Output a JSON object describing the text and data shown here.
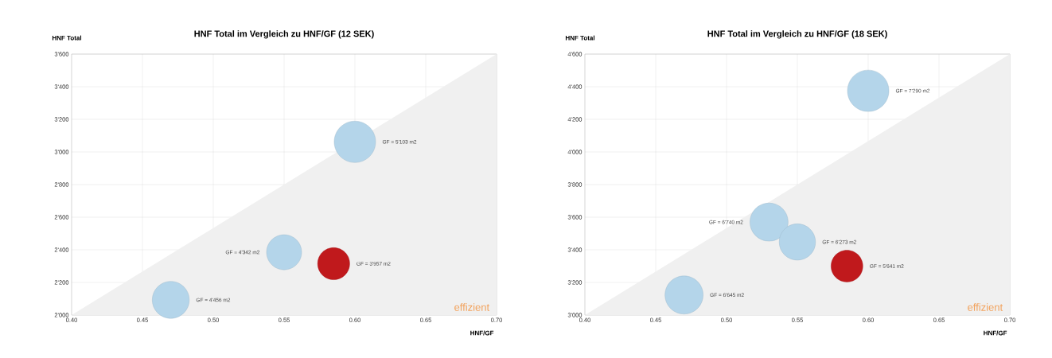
{
  "chart_data": [
    {
      "type": "bubble",
      "title": "HNF Total im Vergleich zu HNF/GF (12 SEK)",
      "xlabel": "HNF/GF",
      "ylabel": "HNF Total",
      "grid": true,
      "xlim": [
        0.4,
        0.7
      ],
      "xticks": [
        {
          "value": 0.4,
          "label": "0.40"
        },
        {
          "value": 0.45,
          "label": "0.45"
        },
        {
          "value": 0.5,
          "label": "0.50"
        },
        {
          "value": 0.55,
          "label": "0.55"
        },
        {
          "value": 0.6,
          "label": "0.60"
        },
        {
          "value": 0.65,
          "label": "0.65"
        },
        {
          "value": 0.7,
          "label": "0.70"
        }
      ],
      "ylim": [
        2000,
        3600
      ],
      "yticks": [
        {
          "value": 2000,
          "label": "2'000"
        },
        {
          "value": 2200,
          "label": "2'200"
        },
        {
          "value": 2400,
          "label": "2'400"
        },
        {
          "value": 2600,
          "label": "2'600"
        },
        {
          "value": 2800,
          "label": "2'800"
        },
        {
          "value": 3000,
          "label": "3'000"
        },
        {
          "value": 3200,
          "label": "3'200"
        },
        {
          "value": 3400,
          "label": "3'400"
        },
        {
          "value": 3600,
          "label": "3'600"
        }
      ],
      "annotations": [
        "effizient"
      ],
      "series": [
        {
          "type": "area",
          "color": "#f0f0f0",
          "x": [
            0.4,
            0.7
          ],
          "values": [
            2000,
            3600
          ]
        },
        {
          "x": [
            0.47,
            0.55,
            0.585,
            0.6
          ],
          "values": [
            2093,
            2385,
            2315,
            3062
          ],
          "sizes": [
            0.8,
            0.72,
            0.6,
            1
          ],
          "colors": [
            "#b4d5ea",
            "#b4d5ea",
            "#c0191c",
            "#b4d5ea"
          ],
          "value_labels": [
            "GF = 4'456 m2",
            "GF = 4'342 m2",
            "GF = 3'957 m2",
            "GF = 5'103 m2"
          ]
        }
      ]
    },
    {
      "type": "bubble",
      "title": "HNF Total im Vergleich zu HNF/GF (18 SEK)",
      "xlabel": "HNF/GF",
      "ylabel": "HNF Total",
      "grid": true,
      "xlim": [
        0.4,
        0.7
      ],
      "xticks": [
        {
          "value": 0.4,
          "label": "0.40"
        },
        {
          "value": 0.45,
          "label": "0.45"
        },
        {
          "value": 0.5,
          "label": "0.50"
        },
        {
          "value": 0.55,
          "label": "0.55"
        },
        {
          "value": 0.6,
          "label": "0.60"
        },
        {
          "value": 0.65,
          "label": "0.65"
        },
        {
          "value": 0.7,
          "label": "0.70"
        }
      ],
      "ylim": [
        3000,
        4600
      ],
      "yticks": [
        {
          "value": 3000,
          "label": "3'000"
        },
        {
          "value": 3200,
          "label": "3'200"
        },
        {
          "value": 3400,
          "label": "3'400"
        },
        {
          "value": 3600,
          "label": "3'600"
        },
        {
          "value": 3800,
          "label": "3'800"
        },
        {
          "value": 4000,
          "label": "4'000"
        },
        {
          "value": 4200,
          "label": "4'200"
        },
        {
          "value": 4400,
          "label": "4'400"
        },
        {
          "value": 4600,
          "label": "4'600"
        }
      ],
      "annotations": [
        "effizient"
      ],
      "series": [
        {
          "type": "area",
          "color": "#f0f0f0",
          "x": [
            0.4,
            0.7
          ],
          "values": [
            3000,
            4600
          ]
        },
        {
          "x": [
            0.47,
            0.53,
            0.55,
            0.585,
            0.6
          ],
          "values": [
            3123,
            3570,
            3448,
            3300,
            4375
          ],
          "sizes": [
            0.85,
            0.85,
            0.77,
            0.59,
            1
          ],
          "colors": [
            "#b4d5ea",
            "#b4d5ea",
            "#b4d5ea",
            "#c0191c",
            "#b4d5ea"
          ],
          "value_labels": [
            "GF = 6'645 m2",
            "GF = 6'740 m2",
            "GF = 6'273 m2",
            "GF = 5'641 m2",
            "GF = 7'290 m2"
          ]
        }
      ]
    }
  ]
}
